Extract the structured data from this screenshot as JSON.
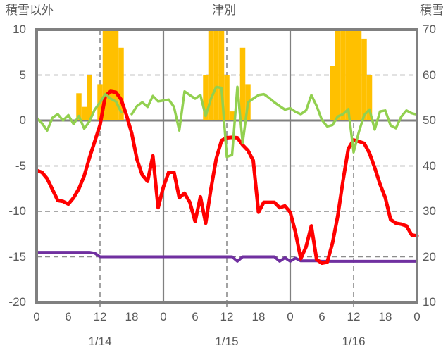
{
  "title": "津別",
  "left_axis_label": "積雪以外",
  "right_axis_label": "積雪",
  "colors": {
    "bars": "#FFC000",
    "temperature_line": "#FF0000",
    "green_line": "#92D050",
    "snow_depth_line": "#7030A0",
    "axis_text": "#595959",
    "border": "#808080",
    "gridline": "#8C8C8C",
    "background": "#FFFFFF"
  },
  "chart_data": {
    "type": "composite bar+line weather chart",
    "station": "津別",
    "hours_total": 72,
    "x_axis": {
      "tick_step_hours": 6,
      "tick_labels_per_day": [
        "0",
        "6",
        "12",
        "18"
      ],
      "final_tick_label": "0",
      "day_labels": [
        "1/14",
        "1/15",
        "1/16"
      ],
      "noon_gridlines_hours": [
        12,
        36,
        60
      ],
      "midnight_gridlines_hours": [
        24,
        48
      ]
    },
    "left_axis": {
      "label": "積雪以外",
      "min": -20,
      "max": 10,
      "ticks": [
        10,
        5,
        0,
        -5,
        -10,
        -15,
        -20
      ]
    },
    "right_axis": {
      "label": "積雪",
      "min": 10,
      "max": 70,
      "ticks": [
        70,
        60,
        50,
        40,
        30,
        20,
        10
      ]
    },
    "series": {
      "bars": {
        "name": "hourly-precipitation-bars",
        "type": "bar",
        "axis": "left",
        "points": [
          [
            8,
            3
          ],
          [
            9,
            1.5
          ],
          [
            10,
            5
          ],
          [
            12,
            4
          ],
          [
            13,
            10
          ],
          [
            14,
            10
          ],
          [
            15,
            10
          ],
          [
            16,
            8
          ],
          [
            32,
            5
          ],
          [
            33,
            10
          ],
          [
            34,
            10
          ],
          [
            35,
            10
          ],
          [
            36,
            5
          ],
          [
            37,
            1
          ],
          [
            39,
            8
          ],
          [
            40,
            4
          ],
          [
            56,
            6
          ],
          [
            57,
            10
          ],
          [
            58,
            10
          ],
          [
            59,
            10
          ],
          [
            60,
            10
          ],
          [
            61,
            10
          ],
          [
            62,
            9
          ],
          [
            63,
            5
          ]
        ]
      },
      "temperature": {
        "name": "temperature-line",
        "type": "line",
        "axis": "left",
        "values": [
          -5.5,
          -5.7,
          -6.4,
          -7.6,
          -8.8,
          -8.9,
          -9.2,
          -8.5,
          -7.5,
          -6.1,
          -4.1,
          -2.3,
          -0.5,
          2.7,
          3.2,
          3.1,
          2.3,
          0.6,
          -1.4,
          -4.3,
          -6.0,
          -6.7,
          -3.9,
          -9.6,
          -7.3,
          -5.7,
          -5.7,
          -8.5,
          -8.0,
          -9.0,
          -11.1,
          -8.4,
          -11.3,
          -7.5,
          -4.2,
          -2.2,
          -1.9,
          -1.85,
          -1.9,
          -2.7,
          -3.3,
          -4.4,
          -10.1,
          -9.0,
          -9.0,
          -9.0,
          -9.6,
          -9.4,
          -10.1,
          -12.3,
          -15.2,
          -13.9,
          -11.6,
          -15.3,
          -15.7,
          -15.6,
          -13.5,
          -10.5,
          -6.6,
          -3.1,
          -2.15,
          -2.3,
          -2.5,
          -3.6,
          -5.2,
          -7.0,
          -8.5,
          -10.9,
          -11.3,
          -11.4,
          -11.6,
          -12.6,
          -12.7
        ]
      },
      "green": {
        "name": "green-line",
        "type": "line",
        "axis": "left",
        "values": [
          0.3,
          -0.3,
          -1.1,
          0.3,
          0.7,
          0.0,
          0.6,
          -0.4,
          0.5,
          -0.9,
          -0.1,
          1.2,
          2.0,
          2.9,
          2.4,
          2.1,
          0.9,
          null,
          0.7,
          1.6,
          2.0,
          1.5,
          2.7,
          2.1,
          2.2,
          2.3,
          1.5,
          -1.1,
          3.2,
          2.8,
          2.4,
          2.8,
          0.5,
          2.4,
          3.7,
          3.6,
          -4.0,
          -3.8,
          3.7,
          -2.5,
          2.0,
          2.4,
          2.8,
          2.9,
          2.5,
          2.0,
          1.6,
          1.2,
          1.35,
          0.95,
          0.7,
          1.1,
          2.8,
          1.6,
          0.05,
          -0.65,
          -0.5,
          0.45,
          0.7,
          1.25,
          -3.5,
          -1.25,
          0.6,
          1.2,
          -1.0,
          1.0,
          1.1,
          -0.55,
          -0.85,
          0.4,
          1.1,
          0.8,
          0.65
        ]
      },
      "snow_depth": {
        "name": "snow-depth-line",
        "type": "line",
        "axis": "left",
        "values": [
          -14.5,
          -14.5,
          -14.5,
          -14.5,
          -14.5,
          -14.5,
          -14.5,
          -14.5,
          -14.5,
          -14.5,
          -14.5,
          -14.6,
          -15.0,
          -15.0,
          -15.0,
          -15.0,
          -15.0,
          -15.0,
          -15.0,
          -15.0,
          -15.0,
          -15.0,
          -15.0,
          -15.0,
          -15.0,
          -15.0,
          -15.0,
          -15.0,
          -15.0,
          -15.0,
          -15.0,
          -15.0,
          -15.0,
          -15.0,
          -15.0,
          -15.0,
          -15.0,
          -15.0,
          -15.5,
          -15.0,
          -15.0,
          -15.0,
          -15.0,
          -15.0,
          -15.0,
          -15.0,
          -15.5,
          -15.1,
          -15.5,
          -15.15,
          -15.45,
          -15.45,
          -15.45,
          -15.45,
          -15.5,
          -15.5,
          -15.5,
          -15.5,
          -15.5,
          -15.5,
          -15.5,
          -15.5,
          -15.5,
          -15.5,
          -15.5,
          -15.5,
          -15.5,
          -15.5,
          -15.5,
          -15.5,
          -15.5,
          -15.5,
          -15.5
        ]
      }
    }
  }
}
